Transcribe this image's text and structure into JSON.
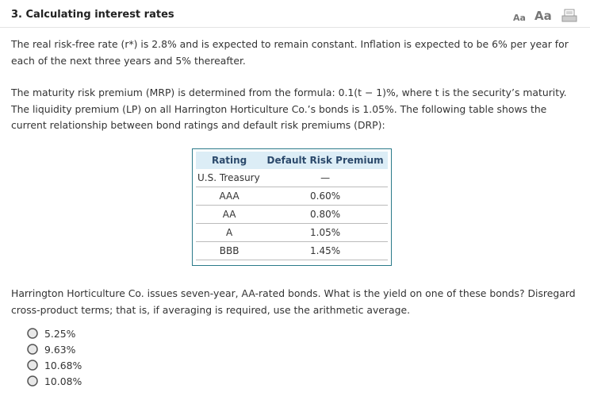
{
  "header": {
    "title": "3. Calculating interest rates",
    "font_controls": [
      "Aa",
      "Aa"
    ]
  },
  "paragraphs": [
    "The real risk-free rate (r*) is 2.8% and is expected to remain constant. Inflation is expected to be 6% per year for each of the next three years and 5% thereafter.",
    "The maturity risk premium (MRP) is determined from the formula: 0.1(t − 1)%, where t is the security’s maturity. The liquidity premium (LP) on all Harrington Horticulture Co.’s bonds is 1.05%. The following table shows the current relationship between bond ratings and default risk premiums (DRP):"
  ],
  "table": {
    "headers": [
      "Rating",
      "Default Risk Premium"
    ],
    "rows": [
      [
        "U.S. Treasury",
        "—"
      ],
      [
        "AAA",
        "0.60%"
      ],
      [
        "AA",
        "0.80%"
      ],
      [
        "A",
        "1.05%"
      ],
      [
        "BBB",
        "1.45%"
      ]
    ]
  },
  "question": "Harrington Horticulture Co. issues seven-year, AA-rated bonds. What is the yield on one of these bonds? Disregard cross-product terms; that is, if averaging is required, use the arithmetic average.",
  "options": [
    "5.25%",
    "9.63%",
    "10.68%",
    "10.08%"
  ]
}
